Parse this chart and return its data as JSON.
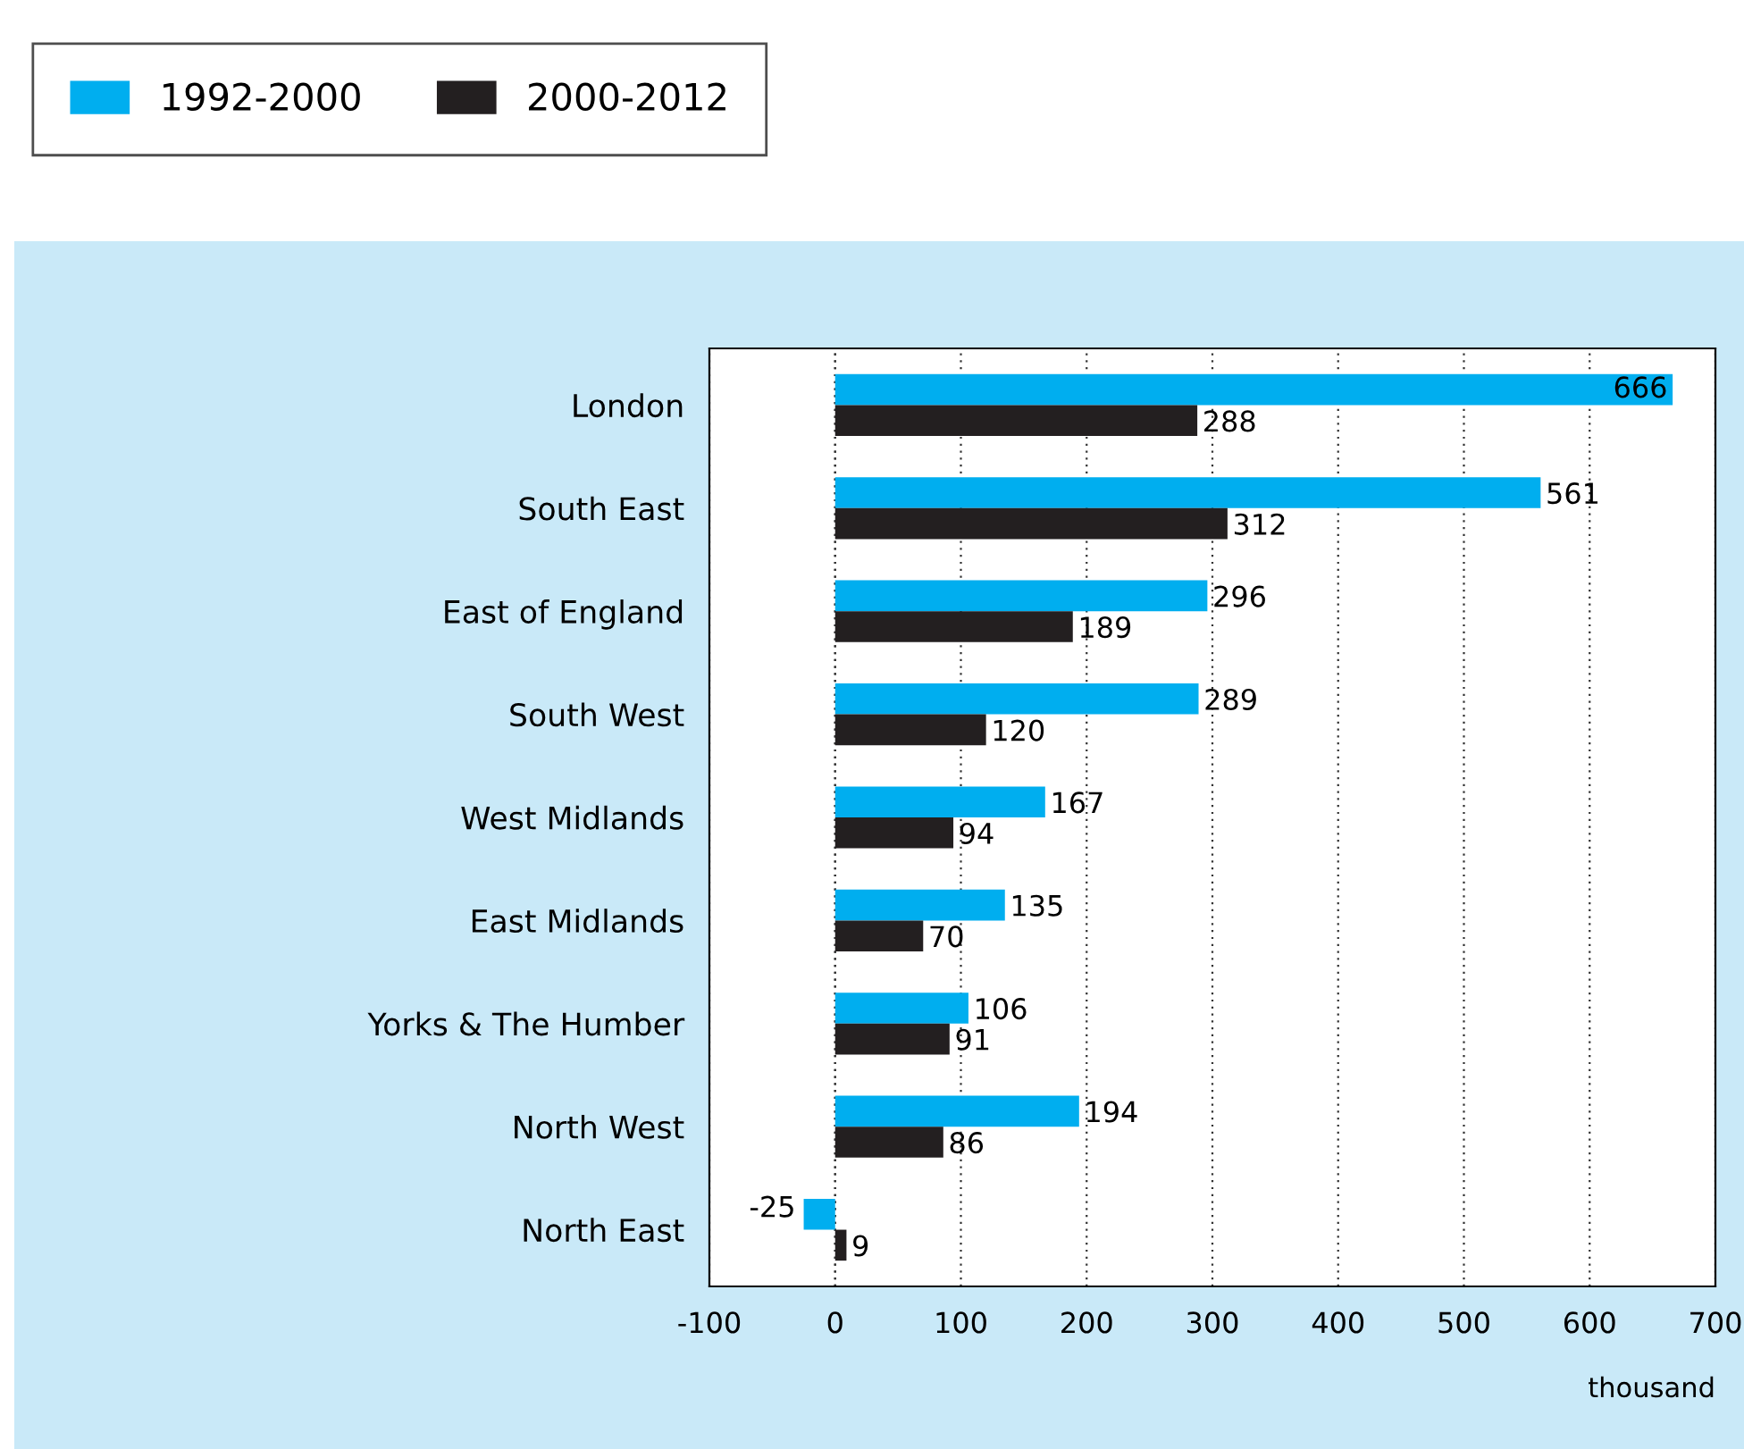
{
  "chart_data": {
    "type": "bar",
    "orientation": "horizontal",
    "categories": [
      "London",
      "South East",
      "East of England",
      "South West",
      "West Midlands",
      "East Midlands",
      "Yorks & The Humber",
      "North West",
      "North East"
    ],
    "series": [
      {
        "name": "1992-2000",
        "color": "#00aeef",
        "values": [
          666,
          561,
          296,
          289,
          167,
          135,
          106,
          194,
          -25
        ]
      },
      {
        "name": "2000-2012",
        "color": "#231f20",
        "values": [
          288,
          312,
          189,
          120,
          94,
          70,
          91,
          86,
          9
        ]
      }
    ],
    "xlim": [
      -100,
      700
    ],
    "xticks": [
      -100,
      0,
      100,
      200,
      300,
      400,
      500,
      600,
      700
    ],
    "xlabel": "thousand",
    "grid": "x",
    "legend": "top left",
    "data_labels": true
  }
}
